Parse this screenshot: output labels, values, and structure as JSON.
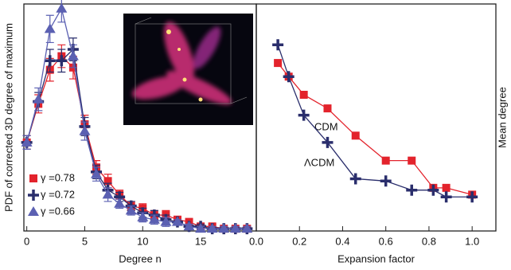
{
  "chart_data": [
    {
      "type": "line",
      "x_label": "Degree n",
      "y_label": "PDF of corrected 3D degree of maximum",
      "x": [
        0,
        1,
        2,
        3,
        4,
        5,
        6,
        7,
        8,
        9,
        10,
        11,
        12,
        13,
        14,
        15,
        16,
        17,
        18,
        19
      ],
      "xlim": [
        -0.25,
        19.8
      ],
      "xticks": [
        0,
        5,
        10,
        15
      ],
      "ylim": [
        0,
        1
      ],
      "series": [
        {
          "name": "γ =0.78",
          "color": "#e3232c",
          "marker": "square",
          "values": [
            0.39,
            0.56,
            0.71,
            0.77,
            0.72,
            0.47,
            0.28,
            0.22,
            0.16,
            0.11,
            0.1,
            0.07,
            0.07,
            0.05,
            0.04,
            0.02,
            0.02,
            0.01,
            0.01,
            0.01
          ],
          "errors": [
            0.03,
            0.04,
            0.05,
            0.05,
            0.05,
            0.04,
            0.03,
            0.03,
            0.02,
            0.02,
            0.02,
            0.02,
            0.02,
            0.01,
            0.01,
            0.01,
            0.01,
            0.01,
            0.01,
            0.01
          ]
        },
        {
          "name": "γ =0.72",
          "color": "#2a2e6c",
          "marker": "cross",
          "values": [
            0.39,
            0.57,
            0.75,
            0.75,
            0.8,
            0.46,
            0.26,
            0.18,
            0.15,
            0.11,
            0.08,
            0.07,
            0.05,
            0.04,
            0.02,
            0.02,
            0.01,
            0.01,
            0.01,
            0.01
          ],
          "errors": [
            0.03,
            0.04,
            0.05,
            0.05,
            0.05,
            0.04,
            0.03,
            0.03,
            0.02,
            0.02,
            0.02,
            0.02,
            0.02,
            0.01,
            0.01,
            0.01,
            0.01,
            0.01,
            0.01,
            0.01
          ]
        },
        {
          "name": "γ =0.66",
          "color": "#5b60b2",
          "marker": "triangle",
          "values": [
            0.39,
            0.58,
            0.89,
            0.98,
            0.77,
            0.44,
            0.25,
            0.16,
            0.12,
            0.09,
            0.06,
            0.05,
            0.04,
            0.04,
            0.02,
            0.01,
            0.01,
            0.01,
            0.01,
            0.01
          ],
          "errors": [
            0.03,
            0.05,
            0.06,
            0.06,
            0.05,
            0.04,
            0.03,
            0.03,
            0.02,
            0.02,
            0.02,
            0.02,
            0.02,
            0.01,
            0.01,
            0.01,
            0.01,
            0.01,
            0.01,
            0.01
          ]
        }
      ]
    },
    {
      "type": "line",
      "x_label": "Expansion factor",
      "y_label": "Mean degree",
      "x": [
        0.1,
        0.15,
        0.22,
        0.33,
        0.46,
        0.6,
        0.72,
        0.82,
        0.88,
        1.0
      ],
      "xlim": [
        0,
        1.11
      ],
      "xticks": [
        {
          "value": 0,
          "label": "0.0"
        },
        0.2,
        0.4,
        0.6,
        0.8,
        {
          "value": 1,
          "label": "1.0"
        }
      ],
      "ylim": [
        0,
        1
      ],
      "series": [
        {
          "name": "CDM",
          "color": "#e3232c",
          "marker": "square",
          "values": [
            0.74,
            0.68,
            0.6,
            0.54,
            0.42,
            0.31,
            0.31,
            0.19,
            0.19,
            0.16
          ]
        },
        {
          "name": "ΛCDM",
          "color": "#2a2e6c",
          "marker": "cross",
          "values": [
            0.82,
            0.68,
            0.51,
            0.39,
            0.23,
            0.22,
            0.18,
            0.18,
            0.15,
            0.15
          ]
        }
      ]
    }
  ]
}
